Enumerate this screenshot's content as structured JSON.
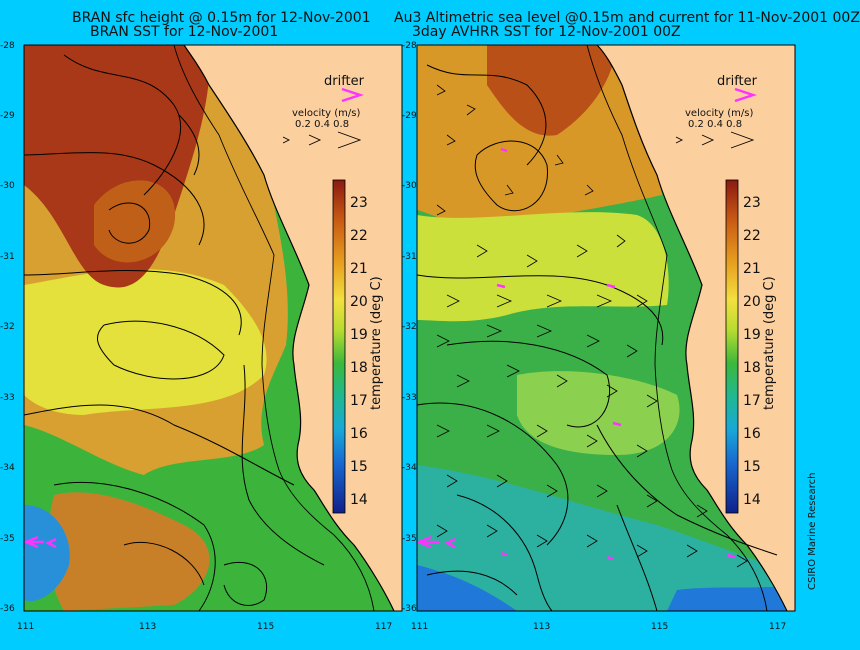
{
  "titles": {
    "left_line1": "BRAN sfc height @ 0.15m for 12-Nov-2001",
    "left_line2": "BRAN SST for 12-Nov-2001",
    "right_line1": "Au3 Altimetric sea level  @0.15m and current for 11-Nov-2001 00Z",
    "right_line2": "3day AVHRR SST for 12-Nov-2001 00Z"
  },
  "y_ticks": [
    "-28",
    "-29",
    "-30",
    "-31",
    "-32",
    "-33",
    "-34",
    "-35",
    "-36"
  ],
  "x_ticks": [
    "111",
    "113",
    "115",
    "117"
  ],
  "legend": {
    "drifter_label": "drifter",
    "velocity_label": "velocity (m/s)",
    "velocity_values": "0.2 0.4 0.8"
  },
  "colorbar": {
    "label": "temperature (deg C)",
    "ticks": [
      "23",
      "22",
      "21",
      "20",
      "19",
      "18",
      "17",
      "16",
      "15",
      "14"
    ]
  },
  "credit": "CSIRO Marine Research",
  "colors": {
    "background": "#00ccff",
    "land": "#fccf9e",
    "drifter": "#ff33ff",
    "contour": "#000000"
  }
}
